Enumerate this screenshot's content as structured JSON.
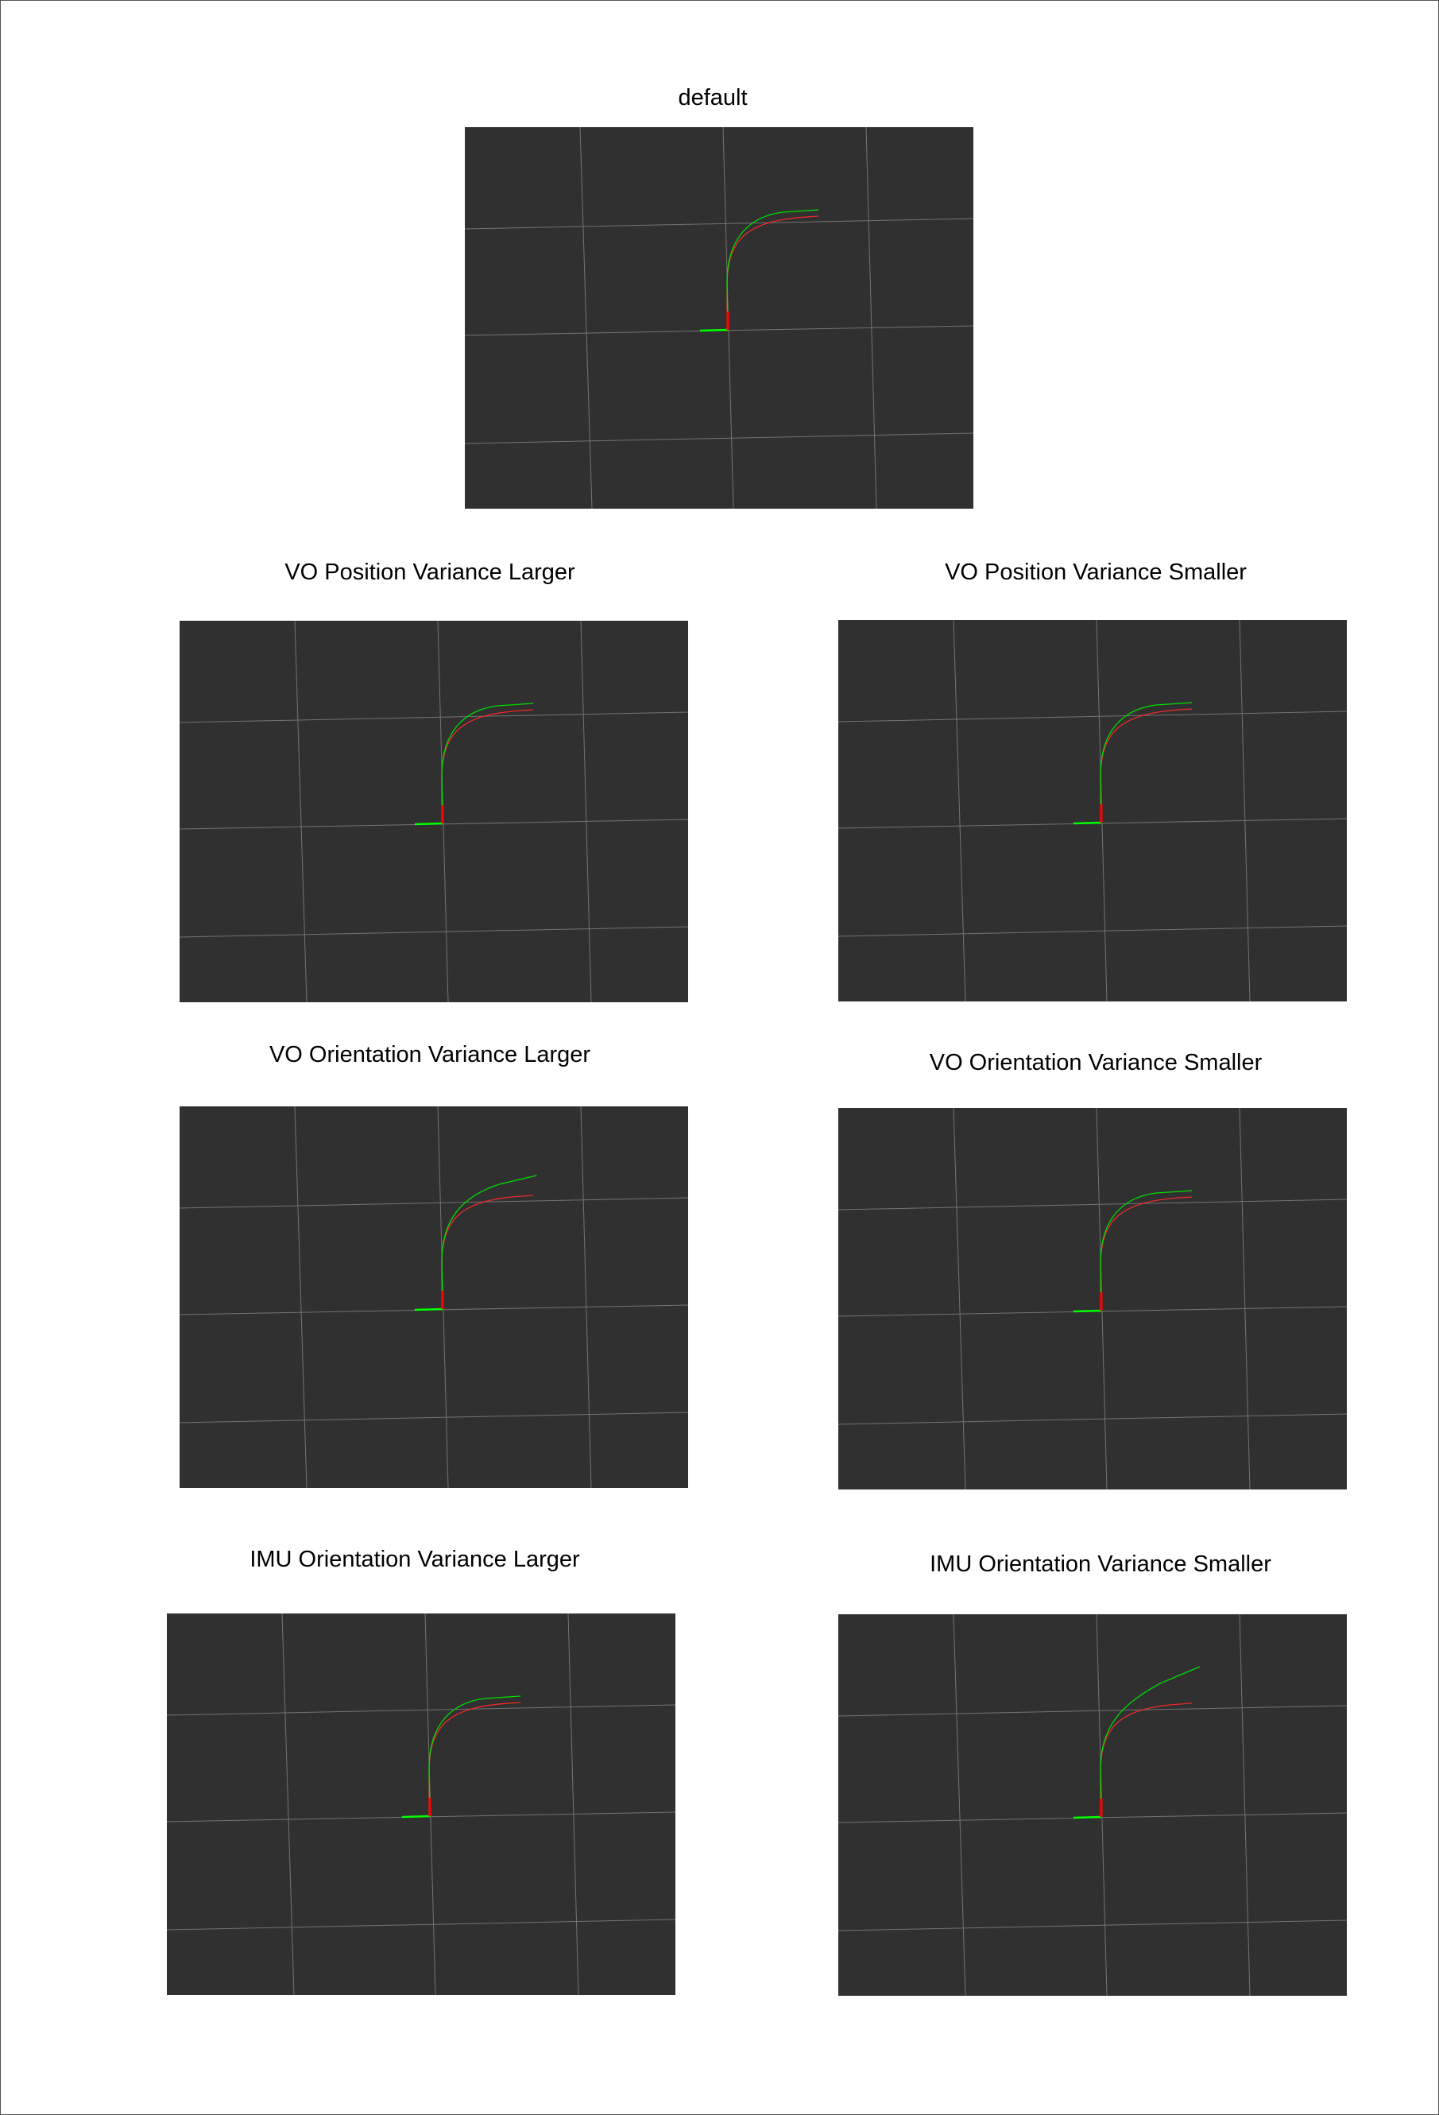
{
  "colors": {
    "background": "#ffffff",
    "viewport": "#303030",
    "grid": "#8a8a8a",
    "estimated_path": "#00dd00",
    "reference_path": "#ff2a2a",
    "axis_x": "#00ff00",
    "axis_y": "#ff0000"
  },
  "panels": [
    {
      "title": "default",
      "end_lift": 0.0
    },
    {
      "title": "VO Position Variance Larger",
      "end_lift": 0.0
    },
    {
      "title": "VO Position Variance Smaller",
      "end_lift": 0.0
    },
    {
      "title": "VO Orientation Variance Larger",
      "end_lift": 0.45
    },
    {
      "title": "VO Orientation Variance Smaller",
      "end_lift": 0.0
    },
    {
      "title": "IMU Orientation Variance Larger",
      "end_lift": 0.0
    },
    {
      "title": "IMU Orientation Variance Smaller",
      "end_lift": 1.0
    }
  ]
}
